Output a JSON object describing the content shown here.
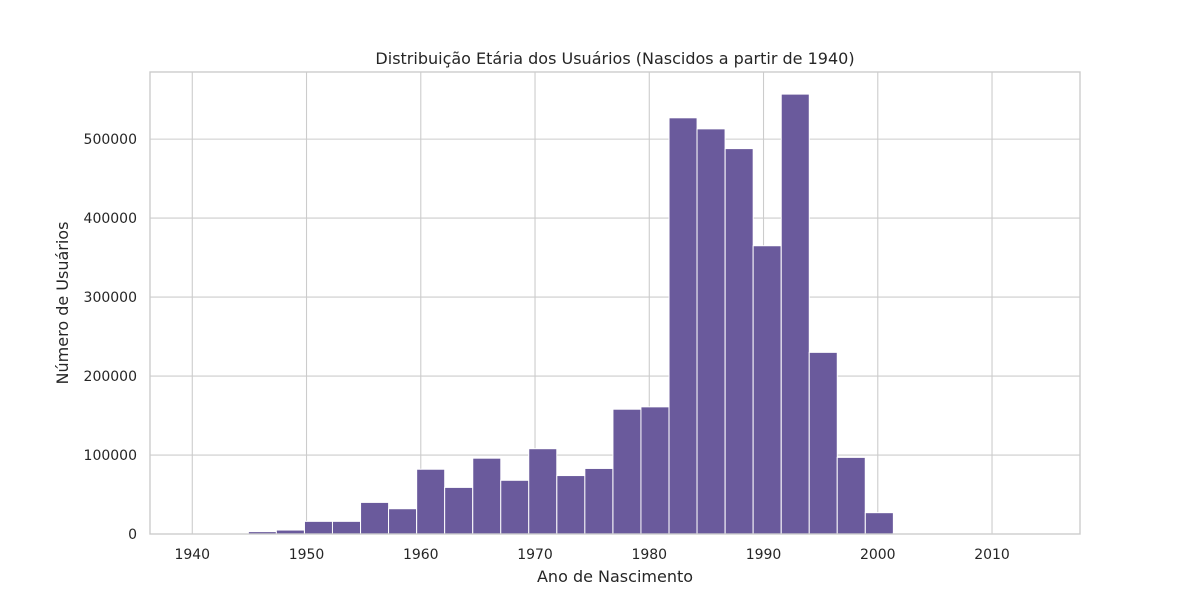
{
  "chart_data": {
    "type": "bar",
    "subtype": "histogram",
    "title": "Distribuição Etária dos Usuários (Nascidos a partir de 1940)",
    "xlabel": "Ano de Nascimento",
    "ylabel": "Número de Usuários",
    "xlim": [
      1936.3,
      2017.7
    ],
    "ylim": [
      0,
      585000
    ],
    "xticks": [
      1940,
      1950,
      1960,
      1970,
      1980,
      1990,
      2000,
      2010
    ],
    "yticks": [
      0,
      100000,
      200000,
      300000,
      400000,
      500000
    ],
    "grid": true,
    "bar_color": "#6a5a9c",
    "bin_width": 2.4545,
    "bins": [
      {
        "start": 1940.0,
        "value": 0
      },
      {
        "start": 1942.45,
        "value": 0
      },
      {
        "start": 1944.91,
        "value": 3000
      },
      {
        "start": 1947.36,
        "value": 5000
      },
      {
        "start": 1949.82,
        "value": 16000
      },
      {
        "start": 1952.27,
        "value": 16000
      },
      {
        "start": 1954.73,
        "value": 40000
      },
      {
        "start": 1957.18,
        "value": 32000
      },
      {
        "start": 1959.64,
        "value": 82000
      },
      {
        "start": 1962.09,
        "value": 59000
      },
      {
        "start": 1964.55,
        "value": 96000
      },
      {
        "start": 1967.0,
        "value": 68000
      },
      {
        "start": 1969.45,
        "value": 108000
      },
      {
        "start": 1971.91,
        "value": 74000
      },
      {
        "start": 1974.36,
        "value": 83000
      },
      {
        "start": 1976.82,
        "value": 158000
      },
      {
        "start": 1979.27,
        "value": 161000
      },
      {
        "start": 1981.73,
        "value": 527000
      },
      {
        "start": 1984.18,
        "value": 513000
      },
      {
        "start": 1986.64,
        "value": 488000
      },
      {
        "start": 1989.09,
        "value": 365000
      },
      {
        "start": 1991.55,
        "value": 557000
      },
      {
        "start": 1994.0,
        "value": 230000
      },
      {
        "start": 1996.45,
        "value": 97000
      },
      {
        "start": 1998.91,
        "value": 27000
      },
      {
        "start": 2001.36,
        "value": 1000
      },
      {
        "start": 2003.82,
        "value": 500
      },
      {
        "start": 2006.27,
        "value": 300
      },
      {
        "start": 2008.73,
        "value": 200
      },
      {
        "start": 2011.18,
        "value": 150
      },
      {
        "start": 2013.64,
        "value": 100
      }
    ]
  }
}
